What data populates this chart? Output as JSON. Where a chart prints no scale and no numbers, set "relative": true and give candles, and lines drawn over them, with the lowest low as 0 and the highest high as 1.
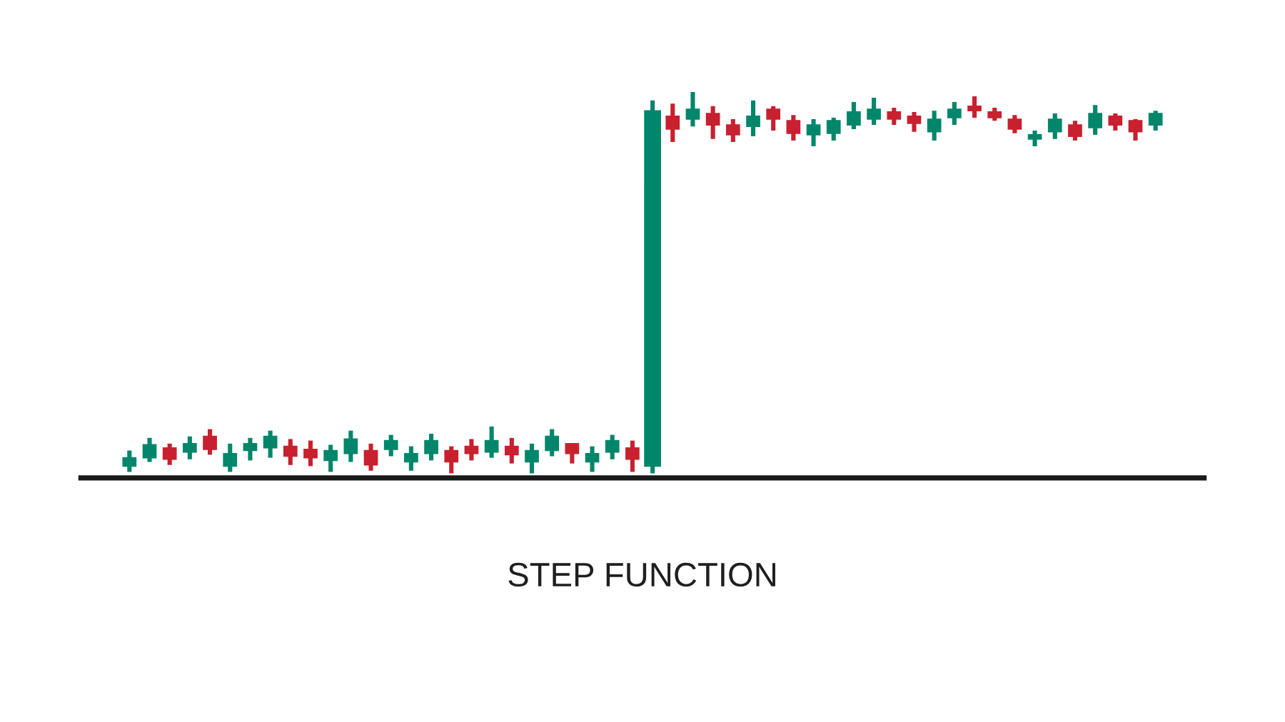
{
  "chart_data": {
    "type": "candlestick",
    "title": "STEP FUNCTION",
    "relative": true,
    "categories": [
      null,
      null,
      null,
      null,
      null,
      null,
      null,
      null,
      null,
      null,
      null,
      null,
      null,
      null,
      null,
      null,
      null,
      null,
      null,
      null,
      null,
      null,
      null,
      null,
      null,
      null,
      null,
      null,
      null,
      null,
      null,
      null,
      null,
      null,
      null,
      null,
      null,
      null,
      null,
      null,
      null,
      null,
      null,
      null,
      null,
      null,
      null,
      null,
      null,
      null,
      null,
      null
    ],
    "ohlc": [
      [
        0.019,
        0.06,
        0.004,
        0.041
      ],
      [
        0.041,
        0.093,
        0.03,
        0.075
      ],
      [
        0.067,
        0.078,
        0.022,
        0.037
      ],
      [
        0.056,
        0.097,
        0.037,
        0.078
      ],
      [
        0.097,
        0.116,
        0.049,
        0.063
      ],
      [
        0.019,
        0.078,
        0.004,
        0.052
      ],
      [
        0.06,
        0.093,
        0.034,
        0.078
      ],
      [
        0.067,
        0.112,
        0.041,
        0.097
      ],
      [
        0.071,
        0.09,
        0.022,
        0.045
      ],
      [
        0.063,
        0.086,
        0.019,
        0.041
      ],
      [
        0.034,
        0.075,
        0.004,
        0.06
      ],
      [
        0.052,
        0.112,
        0.03,
        0.09
      ],
      [
        0.06,
        0.078,
        0.007,
        0.022
      ],
      [
        0.063,
        0.101,
        0.045,
        0.086
      ],
      [
        0.03,
        0.071,
        0.007,
        0.052
      ],
      [
        0.052,
        0.104,
        0.034,
        0.086
      ],
      [
        0.06,
        0.071,
        0,
        0.03
      ],
      [
        0.071,
        0.09,
        0.034,
        0.052
      ],
      [
        0.056,
        0.123,
        0.041,
        0.086
      ],
      [
        0.071,
        0.093,
        0.026,
        0.049
      ],
      [
        0.03,
        0.078,
        0,
        0.06
      ],
      [
        0.06,
        0.116,
        0.045,
        0.097
      ],
      [
        0.078,
        0.078,
        0.026,
        0.052
      ],
      [
        0.03,
        0.071,
        0.004,
        0.052
      ],
      [
        0.056,
        0.101,
        0.037,
        0.086
      ],
      [
        0.067,
        0.086,
        0.004,
        0.037
      ],
      [
        0.019,
        0.978,
        0,
        0.951
      ],
      [
        0.937,
        0.97,
        0.869,
        0.903
      ],
      [
        0.929,
        1,
        0.91,
        0.955
      ],
      [
        0.944,
        0.963,
        0.877,
        0.914
      ],
      [
        0.914,
        0.929,
        0.869,
        0.888
      ],
      [
        0.91,
        0.978,
        0.884,
        0.937
      ],
      [
        0.955,
        0.963,
        0.899,
        0.929
      ],
      [
        0.925,
        0.94,
        0.873,
        0.892
      ],
      [
        0.888,
        0.929,
        0.858,
        0.914
      ],
      [
        0.892,
        0.933,
        0.873,
        0.925
      ],
      [
        0.914,
        0.974,
        0.903,
        0.948
      ],
      [
        0.929,
        0.985,
        0.914,
        0.955
      ],
      [
        0.948,
        0.959,
        0.914,
        0.929
      ],
      [
        0.937,
        0.948,
        0.896,
        0.918
      ],
      [
        0.896,
        0.951,
        0.873,
        0.929
      ],
      [
        0.933,
        0.974,
        0.914,
        0.955
      ],
      [
        0.963,
        0.989,
        0.933,
        0.951
      ],
      [
        0.948,
        0.959,
        0.925,
        0.933
      ],
      [
        0.929,
        0.94,
        0.892,
        0.903
      ],
      [
        0.877,
        0.899,
        0.858,
        0.888
      ],
      [
        0.896,
        0.944,
        0.877,
        0.929
      ],
      [
        0.914,
        0.925,
        0.873,
        0.884
      ],
      [
        0.907,
        0.966,
        0.888,
        0.944
      ],
      [
        0.937,
        0.944,
        0.899,
        0.914
      ],
      [
        0.925,
        0.929,
        0.873,
        0.896
      ],
      [
        0.914,
        0.951,
        0.899,
        0.944
      ]
    ],
    "colors": [
      "#00866b",
      "#00866b",
      "#c8202f",
      "#00866b",
      "#c8202f",
      "#00866b",
      "#00866b",
      "#00866b",
      "#c8202f",
      "#c8202f",
      "#00866b",
      "#00866b",
      "#c8202f",
      "#00866b",
      "#00866b",
      "#00866b",
      "#c8202f",
      "#c8202f",
      "#00866b",
      "#c8202f",
      "#00866b",
      "#00866b",
      "#c8202f",
      "#00866b",
      "#00866b",
      "#c8202f",
      "#00866b",
      "#c8202f",
      "#00866b",
      "#c8202f",
      "#c8202f",
      "#00866b",
      "#c8202f",
      "#c8202f",
      "#00866b",
      "#00866b",
      "#00866b",
      "#00866b",
      "#c8202f",
      "#c8202f",
      "#00866b",
      "#00866b",
      "#c8202f",
      "#c8202f",
      "#c8202f",
      "#00866b",
      "#00866b",
      "#c8202f",
      "#00866b",
      "#c8202f",
      "#c8202f",
      "#00866b"
    ]
  }
}
